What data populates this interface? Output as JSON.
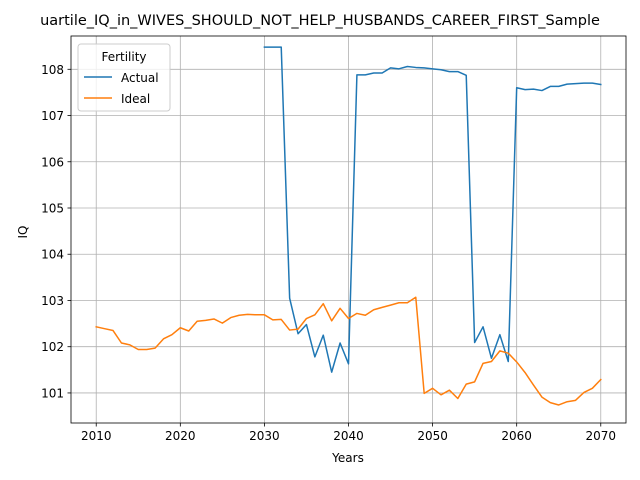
{
  "chart_data": {
    "type": "line",
    "title": "uartile_IQ_in_WIVES_SHOULD_NOT_HELP_HUSBANDS_CAREER_FIRST_Sample",
    "xlabel": "Years",
    "ylabel": "IQ",
    "xlim": [
      2007,
      2073
    ],
    "ylim": [
      100.35,
      108.72
    ],
    "xticks": [
      2010,
      2020,
      2030,
      2040,
      2050,
      2060,
      2070
    ],
    "yticks": [
      101,
      102,
      103,
      104,
      105,
      106,
      107,
      108
    ],
    "grid": true,
    "legend": {
      "title": "Fertility",
      "position": "top-left"
    },
    "series": [
      {
        "name": "Actual",
        "color": "#1f77b4",
        "x": [
          2030,
          2031,
          2032,
          2033,
          2034,
          2035,
          2036,
          2037,
          2038,
          2039,
          2040,
          2041,
          2042,
          2043,
          2044,
          2045,
          2046,
          2047,
          2048,
          2049,
          2050,
          2051,
          2052,
          2053,
          2054,
          2055,
          2056,
          2057,
          2058,
          2059,
          2060,
          2061,
          2062,
          2063,
          2064,
          2065,
          2066,
          2067,
          2068,
          2069,
          2070
        ],
        "y": [
          108.48,
          108.48,
          108.48,
          103.05,
          102.28,
          102.48,
          101.78,
          102.25,
          101.45,
          102.08,
          101.63,
          107.88,
          107.88,
          107.92,
          107.92,
          108.03,
          108.01,
          108.06,
          108.04,
          108.03,
          108.01,
          107.99,
          107.95,
          107.95,
          107.87,
          102.09,
          102.43,
          101.75,
          102.26,
          101.68,
          107.6,
          107.56,
          107.57,
          107.54,
          107.63,
          107.63,
          107.68,
          107.69,
          107.7,
          107.7,
          107.67
        ]
      },
      {
        "name": "Ideal",
        "color": "#ff7f0e",
        "x": [
          2010,
          2011,
          2012,
          2013,
          2014,
          2015,
          2016,
          2017,
          2018,
          2019,
          2020,
          2021,
          2022,
          2023,
          2024,
          2025,
          2026,
          2027,
          2028,
          2029,
          2030,
          2031,
          2032,
          2033,
          2034,
          2035,
          2036,
          2037,
          2038,
          2039,
          2040,
          2041,
          2042,
          2043,
          2044,
          2045,
          2046,
          2047,
          2048,
          2049,
          2050,
          2051,
          2052,
          2053,
          2054,
          2055,
          2056,
          2057,
          2058,
          2059,
          2060,
          2061,
          2062,
          2063,
          2064,
          2065,
          2066,
          2067,
          2068,
          2069,
          2070
        ],
        "y": [
          102.43,
          102.39,
          102.35,
          102.08,
          102.04,
          101.94,
          101.94,
          101.97,
          102.17,
          102.26,
          102.41,
          102.34,
          102.55,
          102.57,
          102.6,
          102.51,
          102.63,
          102.68,
          102.7,
          102.69,
          102.69,
          102.58,
          102.59,
          102.36,
          102.38,
          102.61,
          102.69,
          102.93,
          102.56,
          102.83,
          102.61,
          102.72,
          102.68,
          102.8,
          102.85,
          102.9,
          102.95,
          102.95,
          103.07,
          100.99,
          101.1,
          100.96,
          101.06,
          100.88,
          101.19,
          101.24,
          101.64,
          101.68,
          101.91,
          101.86,
          101.67,
          101.44,
          101.17,
          100.91,
          100.79,
          100.74,
          100.81,
          100.84,
          101.01,
          101.1,
          101.29
        ]
      }
    ]
  }
}
